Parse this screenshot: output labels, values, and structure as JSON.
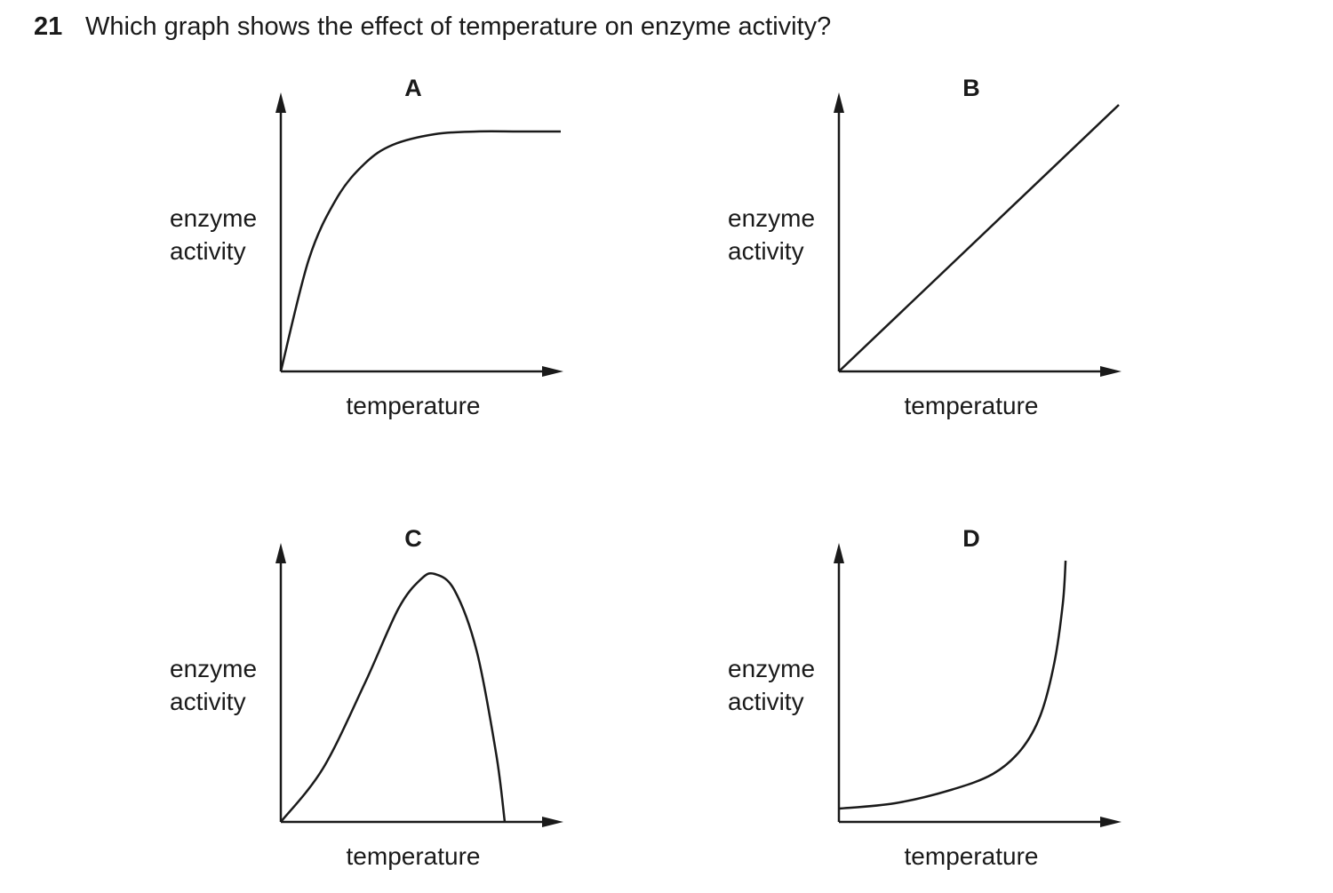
{
  "question": {
    "number": "21",
    "text": "Which graph shows the effect of temperature on enzyme activity?"
  },
  "chart_data": [
    {
      "type": "line",
      "panel_label": "A",
      "ylabel": [
        "enzyme",
        "activity"
      ],
      "xlabel": "temperature",
      "shape": "rises steeply then levels off",
      "x": [
        0,
        0.1,
        0.2,
        0.3,
        0.4,
        0.55,
        0.7,
        0.85,
        1.0
      ],
      "y": [
        0,
        0.42,
        0.65,
        0.78,
        0.85,
        0.89,
        0.9,
        0.9,
        0.9
      ]
    },
    {
      "type": "line",
      "panel_label": "B",
      "ylabel": [
        "enzyme",
        "activity"
      ],
      "xlabel": "temperature",
      "shape": "straight line increasing",
      "x": [
        0,
        1.0
      ],
      "y": [
        0,
        1.0
      ]
    },
    {
      "type": "line",
      "panel_label": "C",
      "ylabel": [
        "enzyme",
        "activity"
      ],
      "xlabel": "temperature",
      "shape": "rises to a peak then falls sharply",
      "x": [
        0,
        0.15,
        0.3,
        0.42,
        0.5,
        0.55,
        0.62,
        0.7,
        0.77,
        0.8
      ],
      "y": [
        0,
        0.2,
        0.52,
        0.8,
        0.91,
        0.93,
        0.87,
        0.64,
        0.25,
        0
      ]
    },
    {
      "type": "line",
      "panel_label": "D",
      "ylabel": [
        "enzyme",
        "activity"
      ],
      "xlabel": "temperature",
      "shape": "increases slowly then very steeply",
      "x": [
        0,
        0.2,
        0.4,
        0.55,
        0.65,
        0.72,
        0.77,
        0.8,
        0.81
      ],
      "y": [
        0.05,
        0.07,
        0.12,
        0.18,
        0.27,
        0.4,
        0.6,
        0.82,
        0.98
      ]
    }
  ]
}
